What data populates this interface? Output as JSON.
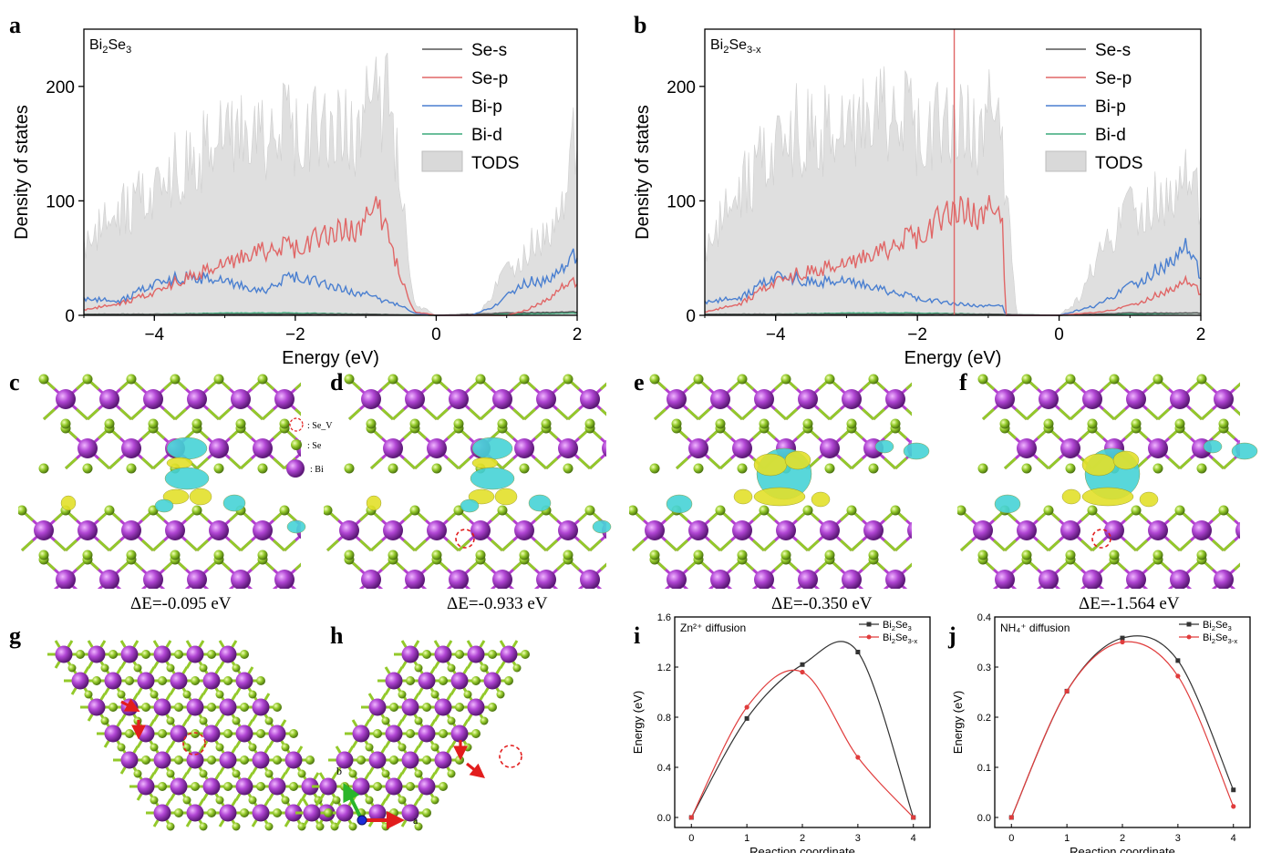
{
  "panels": {
    "a": "a",
    "b": "b",
    "c": "c",
    "d": "d",
    "e": "e",
    "f": "f",
    "g": "g",
    "h": "h",
    "i": "i",
    "j": "j"
  },
  "chart_data": [
    {
      "id": "a",
      "type": "area",
      "title": "Bi2Se3",
      "xlabel": "Energy (eV)",
      "ylabel": "Density of states",
      "xlim": [
        -5,
        2
      ],
      "ylim": [
        0,
        250
      ],
      "xticks": [
        "-4",
        "-2",
        "0",
        "2"
      ],
      "yticks": [
        "0",
        "100",
        "200"
      ],
      "legend": [
        "Se-s",
        "Se-p",
        "Bi-p",
        "Bi-d",
        "TODS"
      ],
      "series": [
        {
          "name": "TODS",
          "x": [
            -5,
            -4.5,
            -4,
            -3.5,
            -3,
            -2.5,
            -2,
            -1.5,
            -1,
            -0.7,
            -0.5,
            -0.3,
            0,
            0.3,
            0.6,
            0.9,
            1.2,
            1.5,
            1.8,
            2
          ],
          "values": [
            65,
            90,
            110,
            140,
            160,
            150,
            165,
            155,
            170,
            200,
            100,
            10,
            0,
            0,
            0,
            30,
            50,
            70,
            90,
            170
          ]
        },
        {
          "name": "Se-p",
          "x": [
            -5,
            -4.5,
            -4,
            -3.5,
            -3,
            -2.5,
            -2,
            -1.5,
            -1,
            -0.8,
            -0.5,
            -0.3,
            0,
            0.5,
            1,
            1.3,
            1.6,
            1.8,
            2
          ],
          "values": [
            5,
            10,
            20,
            35,
            45,
            55,
            60,
            70,
            80,
            95,
            30,
            3,
            0,
            0,
            0,
            5,
            15,
            25,
            30
          ]
        },
        {
          "name": "Bi-p",
          "x": [
            -5,
            -4.5,
            -4,
            -3.5,
            -3,
            -2.5,
            -2,
            -1.5,
            -1,
            -0.5,
            -0.3,
            0,
            0.5,
            0.9,
            1.2,
            1.5,
            1.8,
            2
          ],
          "values": [
            15,
            12,
            28,
            35,
            30,
            20,
            35,
            25,
            18,
            8,
            2,
            0,
            0,
            10,
            28,
            30,
            40,
            55
          ]
        },
        {
          "name": "Bi-d",
          "x": [
            -5,
            -4,
            -3,
            -2,
            -1,
            0,
            1,
            2
          ],
          "values": [
            1,
            1,
            2,
            2,
            1,
            0,
            1,
            2
          ]
        },
        {
          "name": "Se-s",
          "x": [
            -5,
            -4,
            -3,
            -2,
            -1,
            0,
            1,
            2
          ],
          "values": [
            1,
            1,
            1,
            1,
            1,
            0,
            2,
            3
          ]
        }
      ]
    },
    {
      "id": "b",
      "type": "area",
      "title": "Bi2Se3-x",
      "xlabel": "Energy (eV)",
      "ylabel": "Density of states",
      "xlim": [
        -5,
        2
      ],
      "ylim": [
        0,
        250
      ],
      "xticks": [
        "-4",
        "-2",
        "0",
        "2"
      ],
      "yticks": [
        "0",
        "100",
        "200"
      ],
      "legend": [
        "Se-s",
        "Se-p",
        "Bi-p",
        "Bi-d",
        "TODS"
      ],
      "series": [
        {
          "name": "TODS",
          "x": [
            -5,
            -4.5,
            -4,
            -3.5,
            -3,
            -2.5,
            -2,
            -1.5,
            -1,
            -0.8,
            -0.6,
            0,
            0.3,
            0.6,
            1,
            1.4,
            1.8,
            2
          ],
          "values": [
            60,
            110,
            150,
            170,
            160,
            175,
            165,
            160,
            170,
            150,
            0,
            0,
            15,
            60,
            90,
            100,
            120,
            100
          ]
        },
        {
          "name": "Se-p",
          "x": [
            -5,
            -4.5,
            -4,
            -3.5,
            -3,
            -2.5,
            -2,
            -1.5,
            -1,
            -0.8,
            -0.75,
            0,
            0.6,
            1,
            1.4,
            1.8,
            2
          ],
          "values": [
            3,
            10,
            30,
            40,
            45,
            55,
            70,
            90,
            90,
            80,
            0,
            0,
            3,
            8,
            18,
            30,
            20
          ]
        },
        {
          "name": "Bi-p",
          "x": [
            -5,
            -4.5,
            -4,
            -3.5,
            -3,
            -2.5,
            -2,
            -1.5,
            -1,
            -0.8,
            -0.75,
            0,
            0.5,
            1,
            1.4,
            1.8,
            2
          ],
          "values": [
            12,
            15,
            35,
            30,
            30,
            22,
            15,
            10,
            8,
            8,
            0,
            0,
            8,
            25,
            40,
            60,
            35
          ]
        },
        {
          "name": "Bi-d",
          "x": [
            -5,
            -4,
            -3,
            -2,
            -1,
            0,
            1,
            2
          ],
          "values": [
            1,
            1,
            2,
            2,
            1,
            0,
            1,
            2
          ]
        },
        {
          "name": "Se-s",
          "x": [
            -5,
            -4,
            -3,
            -2,
            -1,
            0,
            1,
            2
          ],
          "values": [
            1,
            1,
            1,
            1,
            1,
            0,
            2,
            2
          ]
        }
      ]
    },
    {
      "id": "i",
      "type": "line",
      "title": "Zn²⁺ diffusion",
      "xlabel": "Reaction coordinate",
      "ylabel": "Energy (eV)",
      "xlim": [
        -0.3,
        4.3
      ],
      "ylim": [
        -0.08,
        1.6
      ],
      "xticks": [
        "0",
        "1",
        "2",
        "3",
        "4"
      ],
      "yticks": [
        "0.0",
        "0.4",
        "0.8",
        "1.2",
        "1.6"
      ],
      "x": [
        0,
        1,
        2,
        3,
        4
      ],
      "series": [
        {
          "name": "Bi2Se3",
          "values": [
            0,
            0.79,
            1.22,
            1.32,
            0
          ]
        },
        {
          "name": "Bi2Se3-x",
          "values": [
            0,
            0.88,
            1.16,
            0.48,
            0
          ]
        }
      ]
    },
    {
      "id": "j",
      "type": "line",
      "title": "NH₄⁺ diffusion",
      "xlabel": "Reaction coordinate",
      "ylabel": "Energy (eV)",
      "xlim": [
        -0.3,
        4.3
      ],
      "ylim": [
        -0.02,
        0.4
      ],
      "xticks": [
        "0",
        "1",
        "2",
        "3",
        "4"
      ],
      "yticks": [
        "0.0",
        "0.1",
        "0.2",
        "0.3",
        "0.4"
      ],
      "x": [
        0,
        1,
        2,
        3,
        4
      ],
      "series": [
        {
          "name": "Bi2Se3",
          "values": [
            0,
            0.252,
            0.358,
            0.313,
            0.055
          ]
        },
        {
          "name": "Bi2Se3-x",
          "values": [
            0,
            0.252,
            0.35,
            0.282,
            0.022
          ]
        }
      ]
    }
  ],
  "structures": {
    "c_energy": "ΔE=-0.095 eV",
    "d_energy": "ΔE=-0.933 eV",
    "e_energy": "ΔE=-0.350 eV",
    "f_energy": "ΔE=-1.564 eV",
    "legend_vacancy": ": Se_V",
    "legend_se": ": Se",
    "legend_bi": ": Bi",
    "axis_a": "a",
    "axis_b": "b"
  },
  "colors": {
    "se_s": "#555555",
    "se_p": "#e06666",
    "bi_p": "#4a7fd0",
    "bi_d": "#3aaa7a",
    "tods": "#d9d9d9",
    "bi_atom": "#a23fc8",
    "se_atom": "#8ec62a",
    "iso_yellow": "#e2e02a",
    "iso_cyan": "#46d3d6",
    "line_black": "#333333",
    "line_red": "#e03c3c"
  }
}
